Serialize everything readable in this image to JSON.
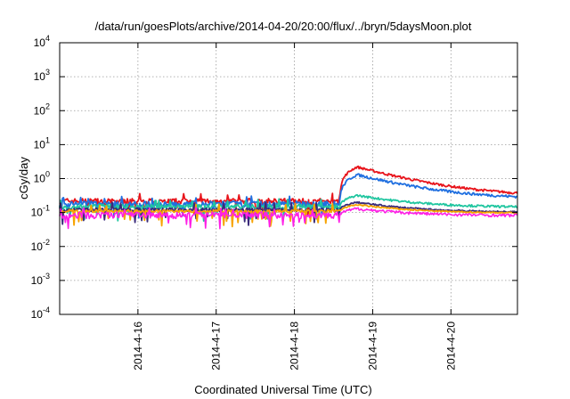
{
  "chart_data": {
    "type": "line",
    "title": "/data/run/goesPlots/archive/2014-04-20/20:00/flux/../bryn/5daysMoon.plot",
    "xlabel": "Coordinated Universal Time (UTC)",
    "ylabel": "cGy/day",
    "x_range_days": [
      15.0,
      20.85
    ],
    "x_ticks": [
      {
        "label": "2014-4-16",
        "value": 16
      },
      {
        "label": "2014-4-17",
        "value": 17
      },
      {
        "label": "2014-4-18",
        "value": 18
      },
      {
        "label": "2014-4-19",
        "value": 19
      },
      {
        "label": "2014-4-20",
        "value": 20
      }
    ],
    "yscale": "log",
    "ylim": [
      0.0001,
      10000
    ],
    "y_ticks": [
      {
        "base": "10",
        "exp": "-4",
        "value": 0.0001
      },
      {
        "base": "10",
        "exp": "-3",
        "value": 0.001
      },
      {
        "base": "10",
        "exp": "-2",
        "value": 0.01
      },
      {
        "base": "10",
        "exp": "-1",
        "value": 0.1
      },
      {
        "base": "10",
        "exp": "0",
        "value": 1
      },
      {
        "base": "10",
        "exp": "1",
        "value": 10
      },
      {
        "base": "10",
        "exp": "2",
        "value": 100
      },
      {
        "base": "10",
        "exp": "3",
        "value": 1000
      },
      {
        "base": "10",
        "exp": "4",
        "value": 10000
      }
    ],
    "grid": true,
    "series": [
      {
        "color": "#e8141b",
        "pre_level": 0.22,
        "peak": 2.2,
        "end_level": 0.3,
        "noise": 0.18
      },
      {
        "color": "#1f6fe0",
        "pre_level": 0.18,
        "peak": 1.3,
        "end_level": 0.25,
        "noise": 0.2
      },
      {
        "color": "#20c6a0",
        "pre_level": 0.15,
        "peak": 0.32,
        "end_level": 0.14,
        "noise": 0.16
      },
      {
        "color": "#3a2a7a",
        "pre_level": 0.12,
        "peak": 0.2,
        "end_level": 0.1,
        "noise": 0.12
      },
      {
        "color": "#f7a300",
        "pre_level": 0.11,
        "peak": 0.17,
        "end_level": 0.095,
        "noise": 0.1
      },
      {
        "color": "#ff1fe6",
        "pre_level": 0.085,
        "peak": 0.13,
        "end_level": 0.08,
        "noise": 0.22
      }
    ],
    "event_start_day": 18.58,
    "event_peak_day": 18.8
  }
}
